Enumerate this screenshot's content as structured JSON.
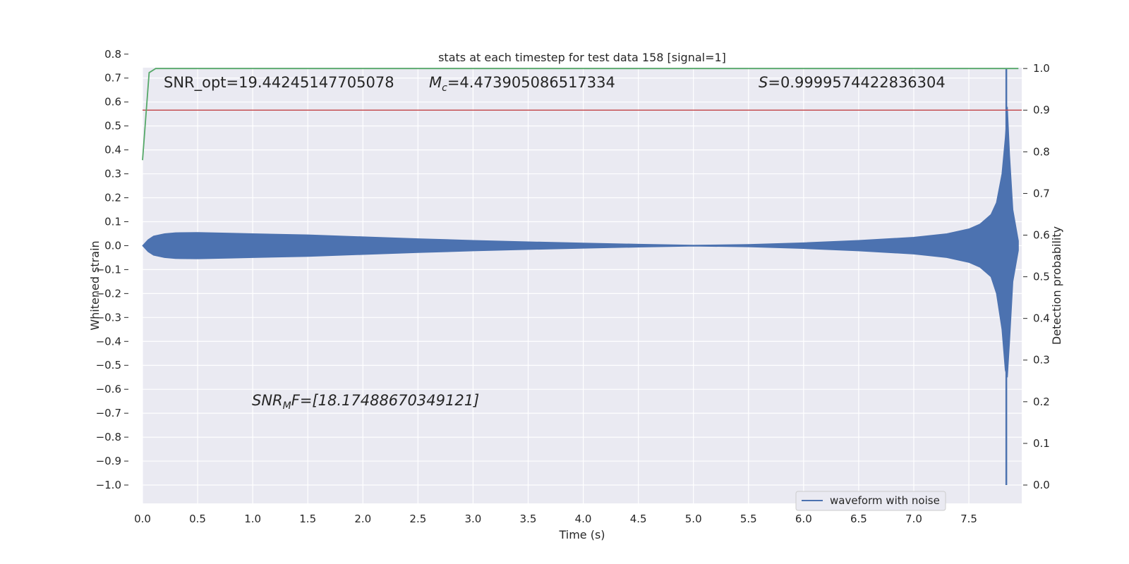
{
  "chart_data": {
    "type": "line",
    "title": "stats at each timestep for test data 158 [signal=1]",
    "xlabel": "Time (s)",
    "ylabel_left": "Whitened strain",
    "ylabel_right": "Detection probability",
    "xlim": [
      0.0,
      7.98
    ],
    "ylim_left": [
      -1.0,
      0.82
    ],
    "ylim_right": [
      0.0,
      1.0
    ],
    "x_ticks": [
      "0.0",
      "0.5",
      "1.0",
      "1.5",
      "2.0",
      "2.5",
      "3.0",
      "3.5",
      "4.0",
      "4.5",
      "5.0",
      "5.5",
      "6.0",
      "6.5",
      "7.0",
      "7.5"
    ],
    "x_tick_values": [
      0,
      0.5,
      1.0,
      1.5,
      2.0,
      2.5,
      3.0,
      3.5,
      4.0,
      4.5,
      5.0,
      5.5,
      6.0,
      6.5,
      7.0,
      7.5
    ],
    "y_left_ticks": [
      "−1.0",
      "−0.9",
      "−0.8",
      "−0.7",
      "−0.6",
      "−0.5",
      "−0.4",
      "−0.3",
      "−0.2",
      "−0.1",
      "0.0",
      "0.1",
      "0.2",
      "0.3",
      "0.4",
      "0.5",
      "0.6",
      "0.7",
      "0.8"
    ],
    "y_left_tick_values": [
      -1.0,
      -0.9,
      -0.8,
      -0.7,
      -0.6,
      -0.5,
      -0.4,
      -0.3,
      -0.2,
      -0.1,
      0.0,
      0.1,
      0.2,
      0.3,
      0.4,
      0.5,
      0.6,
      0.7,
      0.8
    ],
    "y_right_ticks": [
      "0.0",
      "0.1",
      "0.2",
      "0.3",
      "0.4",
      "0.5",
      "0.6",
      "0.7",
      "0.8",
      "0.9",
      "1.0"
    ],
    "y_right_tick_values": [
      0.0,
      0.1,
      0.2,
      0.3,
      0.4,
      0.5,
      0.6,
      0.7,
      0.8,
      0.9,
      1.0
    ],
    "grid": true,
    "legend_placement": "lower-right",
    "series": [
      {
        "name": "waveform with noise",
        "axis": "left",
        "color": "#4c72b0",
        "kind": "envelope",
        "x": [
          0.0,
          0.05,
          0.1,
          0.2,
          0.3,
          0.5,
          0.8,
          1.0,
          1.5,
          2.0,
          2.5,
          3.0,
          3.5,
          4.0,
          4.5,
          5.0,
          5.5,
          6.0,
          6.5,
          7.0,
          7.3,
          7.5,
          7.6,
          7.7,
          7.75,
          7.8,
          7.83,
          7.85,
          7.87,
          7.9,
          7.95
        ],
        "upper": [
          0.0,
          0.025,
          0.04,
          0.05,
          0.054,
          0.055,
          0.052,
          0.05,
          0.045,
          0.037,
          0.029,
          0.022,
          0.016,
          0.011,
          0.006,
          0.002,
          0.005,
          0.012,
          0.022,
          0.035,
          0.05,
          0.07,
          0.09,
          0.13,
          0.18,
          0.3,
          0.45,
          0.58,
          0.38,
          0.15,
          0.02
        ],
        "lower": [
          0.0,
          -0.025,
          -0.04,
          -0.05,
          -0.054,
          -0.055,
          -0.052,
          -0.05,
          -0.045,
          -0.037,
          -0.029,
          -0.022,
          -0.016,
          -0.011,
          -0.006,
          -0.002,
          -0.005,
          -0.012,
          -0.022,
          -0.035,
          -0.05,
          -0.07,
          -0.09,
          -0.13,
          -0.2,
          -0.35,
          -0.52,
          -0.55,
          -0.4,
          -0.15,
          -0.02
        ],
        "spike": {
          "x": 7.84,
          "y_min": -1.0,
          "y_max": 0.74
        }
      },
      {
        "axis": "right",
        "color": "#55a868",
        "x": [
          0.0,
          0.06,
          0.12,
          7.95
        ],
        "y": [
          0.78,
          0.99,
          1.0,
          1.0
        ]
      },
      {
        "axis": "right",
        "color": "#c44e52",
        "x": [
          0.0,
          7.98
        ],
        "y": [
          0.9,
          0.9
        ]
      }
    ],
    "annotations": [
      {
        "id": "snr-opt",
        "text": "SNR_opt=19.44245147705078"
      },
      {
        "id": "mc",
        "text": "=4.473905086517334"
      },
      {
        "id": "s",
        "text": "=0.9999574422836304"
      },
      {
        "id": "snr-mf",
        "text": "F=[18.17488670349121]"
      }
    ]
  },
  "annot_symbols": {
    "mc_main": "M",
    "mc_sub": "c",
    "s_main": "S",
    "snr_main": "SNR",
    "snr_sub": "M"
  },
  "colors": {
    "axes_bg": "#eaeaf2",
    "grid": "#ffffff",
    "wave": "#4c72b0",
    "prob": "#55a868",
    "threshold": "#c44e52"
  }
}
